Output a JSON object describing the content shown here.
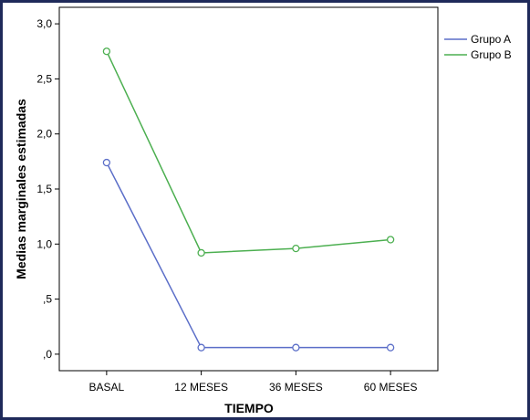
{
  "chart_data": {
    "type": "line",
    "categories": [
      "BASAL",
      "12 MESES",
      "36 MESES",
      "60 MESES"
    ],
    "series": [
      {
        "name": "Grupo A",
        "color": "#5b6ec8",
        "values": [
          1.74,
          0.06,
          0.06,
          0.06
        ]
      },
      {
        "name": "Grupo B",
        "color": "#4caf50",
        "values": [
          2.75,
          0.92,
          0.96,
          1.04
        ]
      }
    ],
    "title": "",
    "xlabel": "TIEMPO",
    "ylabel": "Medias marginales estimadas",
    "ylim": [
      -0.15,
      3.15
    ],
    "yticks": [
      {
        "value": 0.0,
        "label": ",0"
      },
      {
        "value": 0.5,
        "label": ",5"
      },
      {
        "value": 1.0,
        "label": "1,0"
      },
      {
        "value": 1.5,
        "label": "1,5"
      },
      {
        "value": 2.0,
        "label": "2,0"
      },
      {
        "value": 2.5,
        "label": "2,5"
      },
      {
        "value": 3.0,
        "label": "3,0"
      }
    ],
    "grid": false,
    "legend": "top-right"
  }
}
